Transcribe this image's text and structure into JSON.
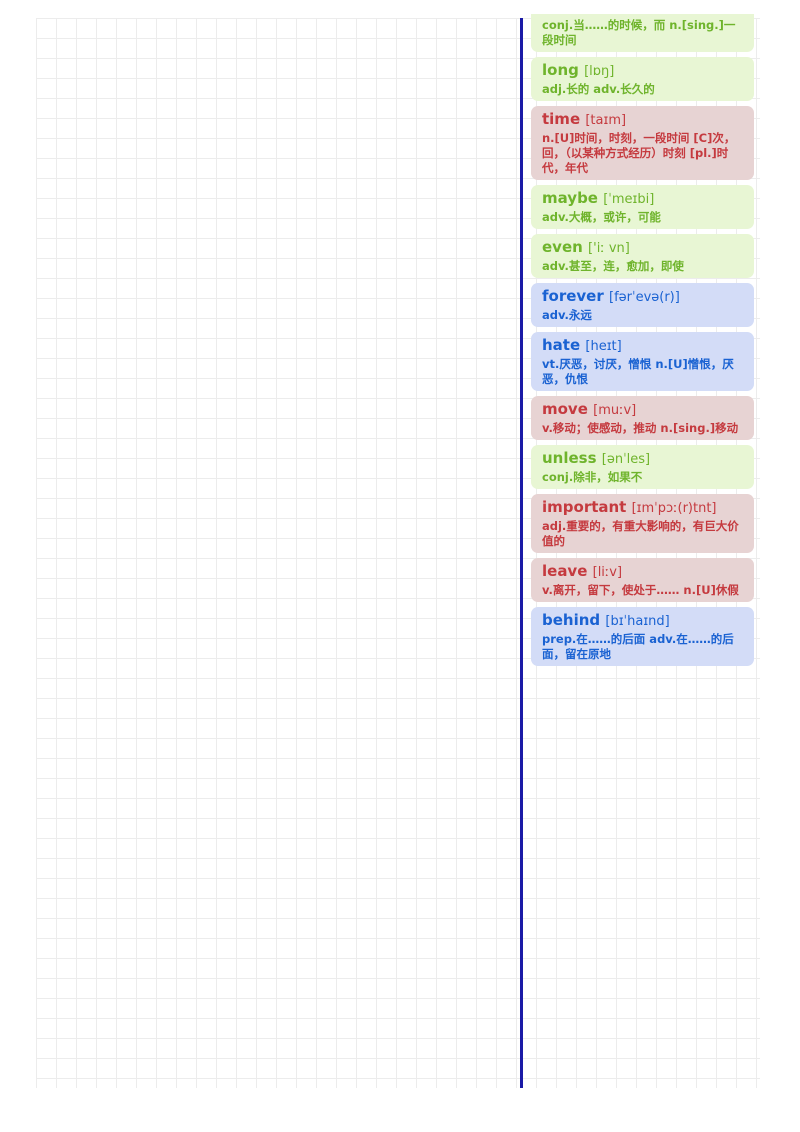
{
  "entries": [
    {
      "word": "",
      "phonetic": "",
      "meaning": "conj.当……的时候，而 n.[sing.]一段时间",
      "color": "green"
    },
    {
      "word": "long",
      "phonetic": "[lɒŋ]",
      "meaning": "adj.长的 adv.长久的",
      "color": "green"
    },
    {
      "word": "time",
      "phonetic": "[taɪm]",
      "meaning": "n.[U]时间，时刻，一段时间 [C]次，回，（以某种方式经历）时刻 [pl.]时代，年代",
      "color": "red"
    },
    {
      "word": "maybe",
      "phonetic": "[ˈmeɪbi]",
      "meaning": "adv.大概，或许，可能",
      "color": "green"
    },
    {
      "word": "even",
      "phonetic": "['iː vn]",
      "meaning": "adv.甚至，连，愈加，即使",
      "color": "green"
    },
    {
      "word": "forever",
      "phonetic": "[fərˈevə(r)]",
      "meaning": "adv.永远",
      "color": "blue"
    },
    {
      "word": "hate",
      "phonetic": "[heɪt]",
      "meaning": "vt.厌恶，讨厌，憎恨 n.[U]憎恨，厌恶，仇恨",
      "color": "blue"
    },
    {
      "word": "move",
      "phonetic": "[muːv]",
      "meaning": "v.移动；使感动，推动 n.[sing.]移动",
      "color": "red"
    },
    {
      "word": "unless",
      "phonetic": "[ənˈles]",
      "meaning": "conj.除非，如果不",
      "color": "green"
    },
    {
      "word": "important",
      "phonetic": "[ɪmˈpɔː(r)tnt]",
      "meaning": "adj.重要的，有重大影响的，有巨大价值的",
      "color": "red"
    },
    {
      "word": "leave",
      "phonetic": "[liːv]",
      "meaning": "v.离开，留下，使处于…… n.[U]休假",
      "color": "red"
    },
    {
      "word": "behind",
      "phonetic": "[bɪˈhaɪnd]",
      "meaning": "prep.在……的后面 adv.在……的后面，留在原地",
      "color": "blue"
    }
  ]
}
